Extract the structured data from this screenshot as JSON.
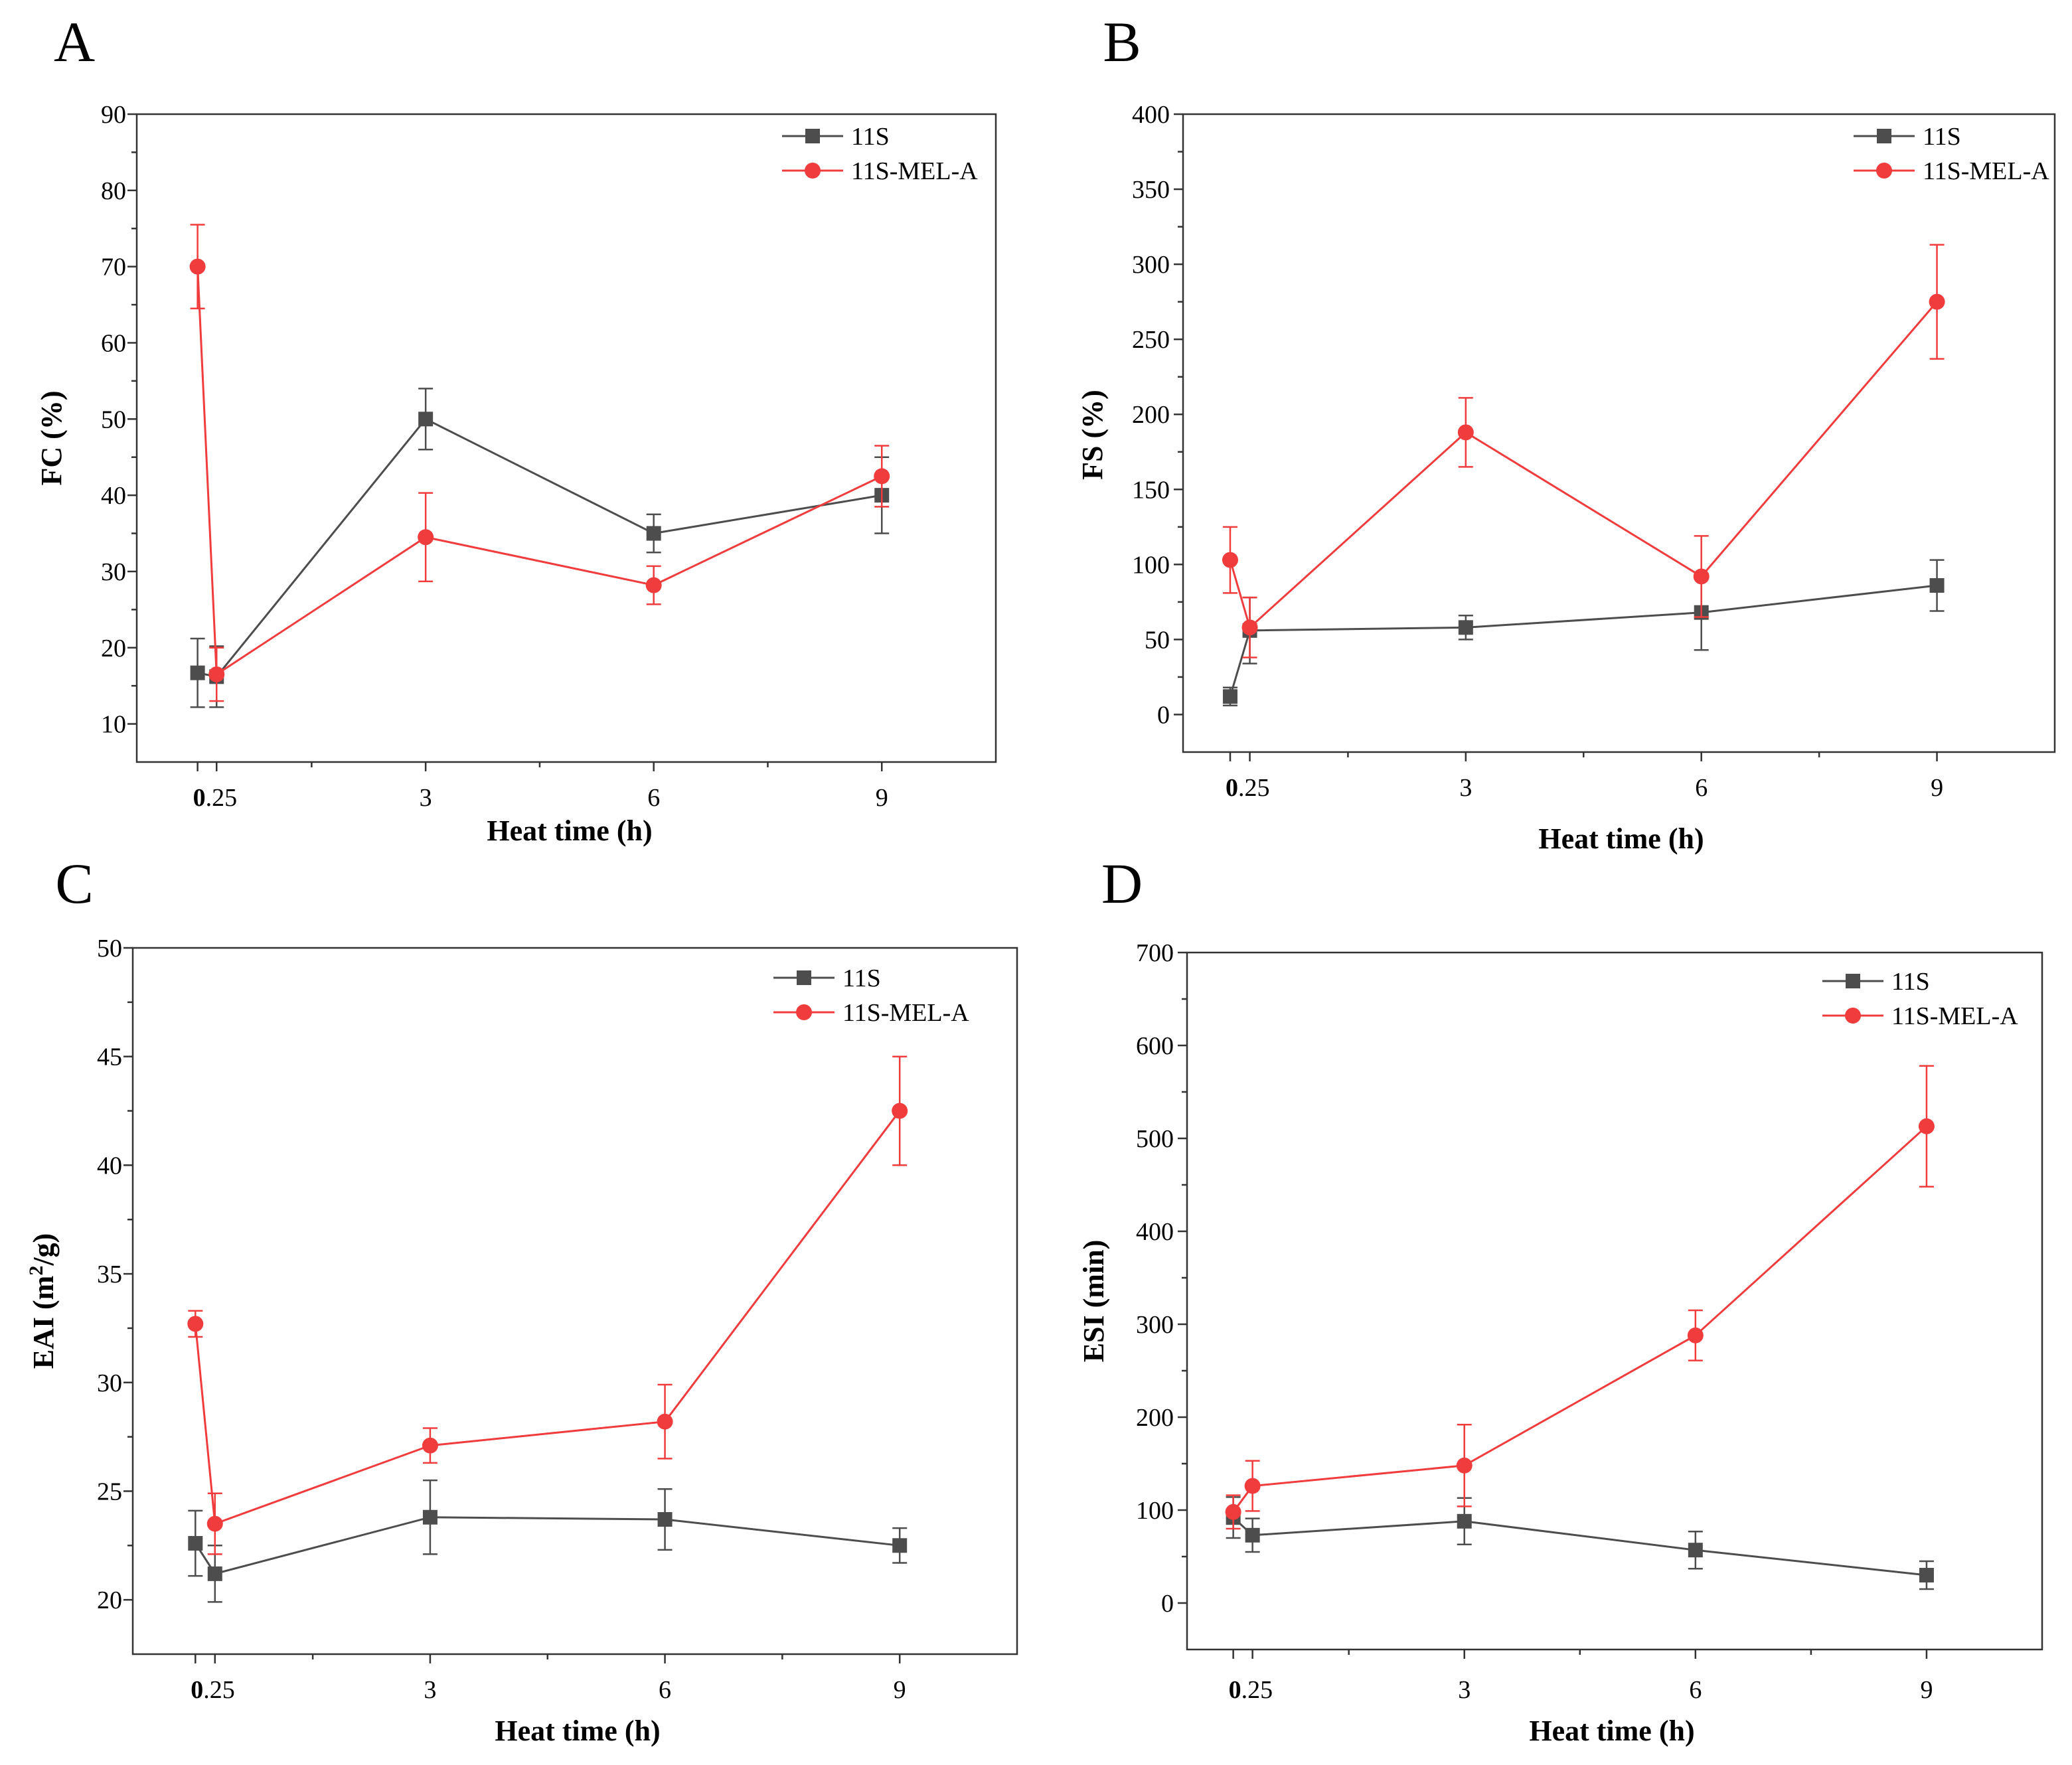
{
  "chart_data": [
    {
      "panel": "A",
      "type": "line",
      "title": "",
      "xlabel": "Heat time (h)",
      "ylabel": "FC (%)",
      "ylabel_sup": "",
      "ylabel_tail": "",
      "xlim": [
        -0.8,
        10.5
      ],
      "ylim": [
        5,
        90
      ],
      "xticks": [
        0,
        0.25,
        3,
        6,
        9
      ],
      "xtick_labels": [
        "0",
        ".25",
        "3",
        "6",
        "9"
      ],
      "yticks": [
        10,
        20,
        30,
        40,
        50,
        60,
        70,
        80,
        90
      ],
      "ytick_labels": [
        "10",
        "20",
        "30",
        "40",
        "50",
        "60",
        "70",
        "80",
        "90"
      ],
      "legend_position": "top-right",
      "x": [
        0,
        0.25,
        3,
        6,
        9
      ],
      "series": [
        {
          "name": "11S",
          "color": "#4d4d4d",
          "marker": "square",
          "values": [
            16.7,
            16.2,
            50.0,
            35.0,
            40.0
          ],
          "errors": [
            4.5,
            4.0,
            4.0,
            2.5,
            5.0
          ]
        },
        {
          "name": "11S-MEL-A",
          "color": "#f03c3c",
          "marker": "circle",
          "values": [
            70.0,
            16.5,
            34.5,
            28.2,
            42.5
          ],
          "errors": [
            5.5,
            3.5,
            5.8,
            2.5,
            4.0
          ]
        }
      ]
    },
    {
      "panel": "B",
      "type": "line",
      "title": "",
      "xlabel": "Heat time (h)",
      "ylabel": "FS (%)",
      "ylabel_sup": "",
      "ylabel_tail": "",
      "xlim": [
        -0.6,
        10.5
      ],
      "ylim": [
        -25,
        400
      ],
      "xticks": [
        0,
        0.25,
        3,
        6,
        9
      ],
      "xtick_labels": [
        "0",
        ".25",
        "3",
        "6",
        "9"
      ],
      "yticks": [
        0,
        50,
        100,
        150,
        200,
        250,
        300,
        350,
        400
      ],
      "ytick_labels": [
        "0",
        "50",
        "100",
        "150",
        "200",
        "250",
        "300",
        "350",
        "400"
      ],
      "legend_position": "top-right",
      "x": [
        0,
        0.25,
        3,
        6,
        9
      ],
      "series": [
        {
          "name": "11S",
          "color": "#4d4d4d",
          "marker": "square",
          "values": [
            12,
            56,
            58,
            68,
            86
          ],
          "errors": [
            6,
            22,
            8,
            25,
            17
          ]
        },
        {
          "name": "11S-MEL-A",
          "color": "#f03c3c",
          "marker": "circle",
          "values": [
            103,
            58,
            188,
            92,
            275
          ],
          "errors": [
            22,
            20,
            23,
            27,
            38
          ]
        }
      ]
    },
    {
      "panel": "C",
      "type": "line",
      "title": "",
      "xlabel": "Heat time (h)",
      "ylabel": "EAI (m",
      "ylabel_sup": "2",
      "ylabel_tail": "/g)",
      "xlim": [
        -0.8,
        10.5
      ],
      "ylim": [
        17.5,
        50
      ],
      "xticks": [
        0,
        0.25,
        3,
        6,
        9
      ],
      "xtick_labels": [
        "0",
        ".25",
        "3",
        "6",
        "9"
      ],
      "yticks": [
        20,
        25,
        30,
        35,
        40,
        45,
        50
      ],
      "ytick_labels": [
        "20",
        "25",
        "30",
        "35",
        "40",
        "45",
        "50"
      ],
      "legend_position": "top-right",
      "x": [
        0,
        0.25,
        3,
        6,
        9
      ],
      "series": [
        {
          "name": "11S",
          "color": "#4d4d4d",
          "marker": "square",
          "values": [
            22.6,
            21.2,
            23.8,
            23.7,
            22.5
          ],
          "errors": [
            1.5,
            1.3,
            1.7,
            1.4,
            0.8
          ]
        },
        {
          "name": "11S-MEL-A",
          "color": "#f03c3c",
          "marker": "circle",
          "values": [
            32.7,
            23.5,
            27.1,
            28.2,
            42.5
          ],
          "errors": [
            0.6,
            1.4,
            0.8,
            1.7,
            2.5
          ]
        }
      ]
    },
    {
      "panel": "D",
      "type": "line",
      "title": "",
      "xlabel": "Heat time (h)",
      "ylabel": "ESI (min)",
      "ylabel_sup": "",
      "ylabel_tail": "",
      "xlim": [
        -0.6,
        10.5
      ],
      "ylim": [
        -50,
        700
      ],
      "xticks": [
        0,
        0.25,
        3,
        6,
        9
      ],
      "xtick_labels": [
        "0",
        ".25",
        "3",
        "6",
        "9"
      ],
      "yticks": [
        0,
        100,
        200,
        300,
        400,
        500,
        600,
        700
      ],
      "ytick_labels": [
        "0",
        "100",
        "200",
        "300",
        "400",
        "500",
        "600",
        "700"
      ],
      "legend_position": "top-right",
      "x": [
        0,
        0.25,
        3,
        6,
        9
      ],
      "series": [
        {
          "name": "11S",
          "color": "#4d4d4d",
          "marker": "square",
          "values": [
            92,
            73,
            88,
            57,
            30
          ],
          "errors": [
            22,
            18,
            25,
            20,
            15
          ]
        },
        {
          "name": "11S-MEL-A",
          "color": "#f03c3c",
          "marker": "circle",
          "values": [
            98,
            126,
            148,
            288,
            513
          ],
          "errors": [
            18,
            27,
            44,
            27,
            65
          ]
        }
      ]
    }
  ]
}
